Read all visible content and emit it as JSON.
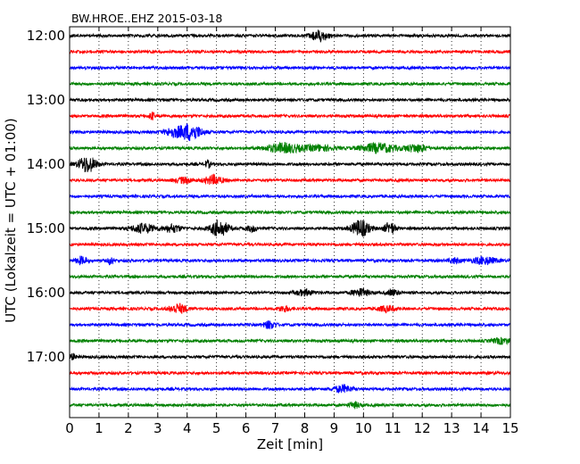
{
  "chart_data": {
    "type": "line",
    "title": "BW.HROE..EHZ 2015-03-18",
    "xlabel": "Zeit  [min]",
    "ylabel": "UTC (Lokalzeit = UTC + 01:00)",
    "xlim": [
      0,
      15
    ],
    "x_ticks": [
      "0",
      "1",
      "2",
      "3",
      "4",
      "5",
      "6",
      "7",
      "8",
      "9",
      "10",
      "11",
      "12",
      "13",
      "14",
      "15"
    ],
    "y_ticks": [
      "12:00",
      "13:00",
      "14:00",
      "15:00",
      "16:00",
      "17:00"
    ],
    "grid": true,
    "series_colors": [
      "#000000",
      "#ff0000",
      "#0000ff",
      "#008000"
    ],
    "traces": [
      {
        "start": "12:00",
        "color": "#000000",
        "events": [
          [
            8.5,
            0.3,
            6
          ]
        ]
      },
      {
        "start": "12:15",
        "color": "#ff0000",
        "events": []
      },
      {
        "start": "12:30",
        "color": "#0000ff",
        "events": []
      },
      {
        "start": "12:45",
        "color": "#008000",
        "events": []
      },
      {
        "start": "13:00",
        "color": "#000000",
        "events": []
      },
      {
        "start": "13:15",
        "color": "#ff0000",
        "events": [
          [
            2.8,
            0.1,
            4
          ]
        ]
      },
      {
        "start": "13:30",
        "color": "#0000ff",
        "events": [
          [
            4.1,
            0.4,
            9
          ],
          [
            3.5,
            0.3,
            4
          ]
        ]
      },
      {
        "start": "13:45",
        "color": "#008000",
        "events": [
          [
            7.3,
            0.6,
            5
          ],
          [
            10.5,
            0.6,
            5
          ],
          [
            11.8,
            0.4,
            4
          ],
          [
            8.5,
            0.5,
            3
          ]
        ]
      },
      {
        "start": "14:00",
        "color": "#000000",
        "events": [
          [
            0.6,
            0.3,
            9
          ],
          [
            4.7,
            0.1,
            4
          ]
        ]
      },
      {
        "start": "14:15",
        "color": "#ff0000",
        "events": [
          [
            4.9,
            0.3,
            5
          ],
          [
            3.9,
            0.3,
            3
          ]
        ]
      },
      {
        "start": "14:30",
        "color": "#0000ff",
        "events": []
      },
      {
        "start": "14:45",
        "color": "#008000",
        "events": []
      },
      {
        "start": "15:00",
        "color": "#000000",
        "events": [
          [
            2.5,
            0.4,
            5
          ],
          [
            5.1,
            0.3,
            9
          ],
          [
            9.9,
            0.3,
            9
          ],
          [
            10.9,
            0.2,
            6
          ],
          [
            3.5,
            0.3,
            4
          ],
          [
            6.2,
            0.2,
            3
          ]
        ]
      },
      {
        "start": "15:15",
        "color": "#ff0000",
        "events": []
      },
      {
        "start": "15:30",
        "color": "#0000ff",
        "events": [
          [
            0.4,
            0.2,
            4
          ],
          [
            1.4,
            0.1,
            4
          ],
          [
            14.1,
            0.4,
            4
          ],
          [
            13.1,
            0.2,
            3
          ]
        ]
      },
      {
        "start": "15:45",
        "color": "#008000",
        "events": []
      },
      {
        "start": "16:00",
        "color": "#000000",
        "events": [
          [
            9.9,
            0.3,
            4
          ],
          [
            8.0,
            0.3,
            3
          ],
          [
            11.0,
            0.2,
            3
          ]
        ]
      },
      {
        "start": "16:15",
        "color": "#ff0000",
        "events": [
          [
            3.7,
            0.3,
            5
          ],
          [
            7.3,
            0.2,
            3
          ],
          [
            10.8,
            0.3,
            3
          ]
        ]
      },
      {
        "start": "16:30",
        "color": "#0000ff",
        "events": [
          [
            6.8,
            0.2,
            4
          ]
        ]
      },
      {
        "start": "16:45",
        "color": "#008000",
        "events": [
          [
            14.7,
            0.3,
            3
          ]
        ]
      },
      {
        "start": "17:00",
        "color": "#000000",
        "events": [
          [
            0.1,
            0.1,
            3
          ]
        ]
      },
      {
        "start": "17:15",
        "color": "#ff0000",
        "events": []
      },
      {
        "start": "17:30",
        "color": "#0000ff",
        "events": [
          [
            9.3,
            0.3,
            4
          ]
        ]
      },
      {
        "start": "17:45",
        "color": "#008000",
        "events": [
          [
            9.7,
            0.2,
            3
          ]
        ]
      }
    ]
  }
}
